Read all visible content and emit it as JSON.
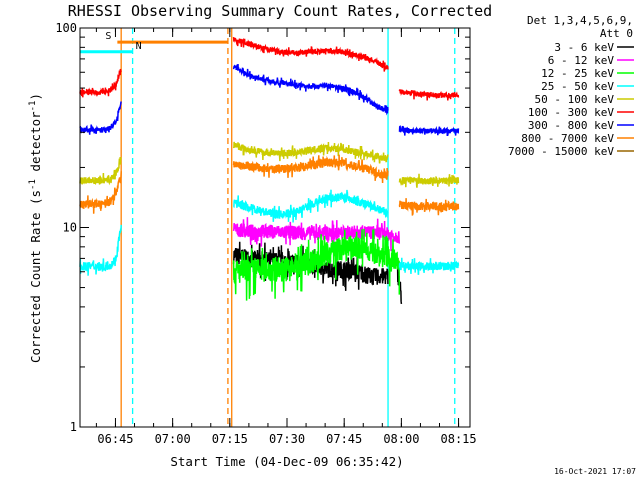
{
  "chart_data": {
    "type": "line",
    "title": "RHESSI Observing Summary Count Rates, Corrected",
    "xlabel": "Start Time (04-Dec-09 06:35:42)",
    "ylabel_prefix": "Corrected Count Rate (s",
    "ylabel_sup1": "-1",
    "ylabel_mid": " detector",
    "ylabel_sup2": "-1",
    "ylabel_suffix": ")",
    "y_scale": "log",
    "ylim": [
      1,
      100
    ],
    "xlim": [
      "06:35:42",
      "08:18:00"
    ],
    "x_ticks": [
      "06:45",
      "07:00",
      "07:15",
      "07:30",
      "07:45",
      "08:00",
      "08:15"
    ],
    "y_ticks": [
      "1",
      "10",
      "100"
    ],
    "legend_position": "right",
    "legend_header": [
      "Det 1,3,4,5,6,9,",
      "Att 0"
    ],
    "timestamp": "16-Oct-2021 17:07",
    "data_gaps": [
      [
        "06:46:30",
        "07:15:30"
      ],
      [
        "07:56:30",
        "07:59:30"
      ]
    ],
    "attenuator_flags": [
      {
        "label": "S",
        "start": "06:45:30",
        "end": "07:14:30",
        "color": "#ff8000"
      },
      {
        "label": "N",
        "start": "06:35:42",
        "end": "06:49:30",
        "color": "#00ffff"
      }
    ],
    "markers": [
      {
        "time": "06:46:30",
        "style": "solid",
        "color": "#ff8000"
      },
      {
        "time": "06:49:30",
        "style": "dashed",
        "color": "#00ffff"
      },
      {
        "time": "07:14:30",
        "style": "dashed",
        "color": "#ff8000"
      },
      {
        "time": "07:15:30",
        "style": "solid",
        "color": "#ff8000"
      },
      {
        "time": "07:56:30",
        "style": "solid",
        "color": "#00ffff"
      },
      {
        "time": "08:14:00",
        "style": "dashed",
        "color": "#00ffff"
      }
    ],
    "series": [
      {
        "name": "3 - 6 keV",
        "color": "#000000",
        "level": 6.3,
        "noise": 0.1,
        "segments": [
          {
            "t": [
              "07:16:00",
              "07:56:30"
            ],
            "values": [
              7.3,
              7.0,
              6.9,
              6.8,
              6.7,
              6.6,
              6.2,
              6.2,
              6.0,
              5.7,
              5.7
            ]
          },
          {
            "t": [
              "07:59:00",
              "08:00:00"
            ],
            "values": [
              6.0,
              4.5
            ]
          }
        ]
      },
      {
        "name": "6 - 12 keV",
        "color": "#ff00ff",
        "level": 9.5,
        "noise": 0.08,
        "segments": [
          {
            "t": [
              "07:16:00",
              "07:59:30"
            ],
            "values": [
              9.8,
              9.6,
              9.6,
              9.5,
              9.4,
              9.4,
              9.3,
              9.5,
              9.5,
              9.4,
              9.0
            ]
          }
        ]
      },
      {
        "name": "12 - 25 keV",
        "color": "#00ff00",
        "level": 6.0,
        "noise": 0.14,
        "segments": [
          {
            "t": [
              "07:16:00",
              "07:59:30"
            ],
            "values": [
              6.0,
              6.1,
              6.2,
              6.2,
              6.5,
              7.0,
              7.7,
              8.0,
              7.8,
              7.3,
              6.6
            ]
          }
        ]
      },
      {
        "name": "25 - 50 keV",
        "color": "#00ffff",
        "level": 6.4,
        "noise": 0.05,
        "segments": [
          {
            "t": [
              "06:35:42",
              "06:46:30"
            ],
            "values": [
              6.4,
              6.4,
              6.4,
              6.4,
              6.3,
              6.4,
              6.5,
              7.0,
              10.0
            ]
          },
          {
            "t": [
              "07:16:00",
              "07:56:30"
            ],
            "values": [
              13.3,
              12.6,
              12.0,
              11.6,
              11.9,
              13.0,
              14.0,
              14.3,
              13.5,
              12.7,
              11.8
            ]
          },
          {
            "t": [
              "07:59:30",
              "08:15:00"
            ],
            "values": [
              6.4,
              6.4,
              6.4,
              6.4,
              6.4,
              6.4
            ]
          }
        ]
      },
      {
        "name": "50 - 100 keV",
        "color": "#cccc00",
        "level": 17,
        "noise": 0.04,
        "segments": [
          {
            "t": [
              "06:35:42",
              "06:46:30"
            ],
            "values": [
              17.3,
              17.2,
              17.3,
              17.2,
              17.2,
              17.3,
              17.5,
              18.5,
              22
            ]
          },
          {
            "t": [
              "07:16:00",
              "07:56:30"
            ],
            "values": [
              26,
              24.5,
              23.8,
              23.5,
              23.8,
              24.5,
              25,
              24.8,
              23.8,
              23,
              22
            ]
          },
          {
            "t": [
              "07:59:30",
              "08:15:00"
            ],
            "values": [
              17.2,
              17.2,
              17.1,
              17.2,
              17.2,
              17.2
            ]
          }
        ]
      },
      {
        "name": "100 - 300 keV",
        "color": "#ff0000",
        "level": 47,
        "noise": 0.03,
        "segments": [
          {
            "t": [
              "06:35:42",
              "06:46:30"
            ],
            "values": [
              48,
              47.5,
              48,
              47.5,
              48,
              48,
              49,
              52,
              62
            ]
          },
          {
            "t": [
              "07:16:00",
              "07:56:30"
            ],
            "values": [
              88,
              83,
              79,
              76,
              75,
              76,
              77,
              76,
              73,
              69,
              63
            ]
          },
          {
            "t": [
              "07:59:30",
              "08:15:00"
            ],
            "values": [
              48,
              47,
              46.5,
              46,
              46,
              46
            ]
          }
        ]
      },
      {
        "name": "300 - 800 keV",
        "color": "#0000ff",
        "level": 31,
        "noise": 0.03,
        "segments": [
          {
            "t": [
              "06:35:42",
              "06:46:30"
            ],
            "values": [
              31,
              30.8,
              31,
              30.5,
              31,
              31,
              32,
              34,
              42
            ]
          },
          {
            "t": [
              "07:16:00",
              "07:56:30"
            ],
            "values": [
              64,
              58,
              55,
              53,
              52,
              51,
              51.5,
              50,
              47,
              42,
              38
            ]
          },
          {
            "t": [
              "07:59:30",
              "08:15:00"
            ],
            "values": [
              31,
              30.5,
              30.5,
              30.5,
              30.5,
              30.5
            ]
          }
        ]
      },
      {
        "name": "800 - 7000 keV",
        "color": "#ff8000",
        "level": 13,
        "noise": 0.05,
        "segments": [
          {
            "t": [
              "06:35:42",
              "06:46:30"
            ],
            "values": [
              13.2,
              13.0,
              13.1,
              13.2,
              13.0,
              13.2,
              13.6,
              15,
              18
            ]
          },
          {
            "t": [
              "07:16:00",
              "07:56:30"
            ],
            "values": [
              21,
              20.3,
              19.8,
              19.6,
              19.8,
              20.5,
              21.2,
              21,
              20.2,
              19.2,
              18
            ]
          },
          {
            "t": [
              "07:59:30",
              "08:15:00"
            ],
            "values": [
              13,
              12.8,
              12.8,
              12.8,
              12.8,
              12.8
            ]
          }
        ]
      },
      {
        "name": "7000 - 15000 keV",
        "color": "#996600",
        "level": null,
        "noise": 0,
        "segments": []
      }
    ]
  }
}
